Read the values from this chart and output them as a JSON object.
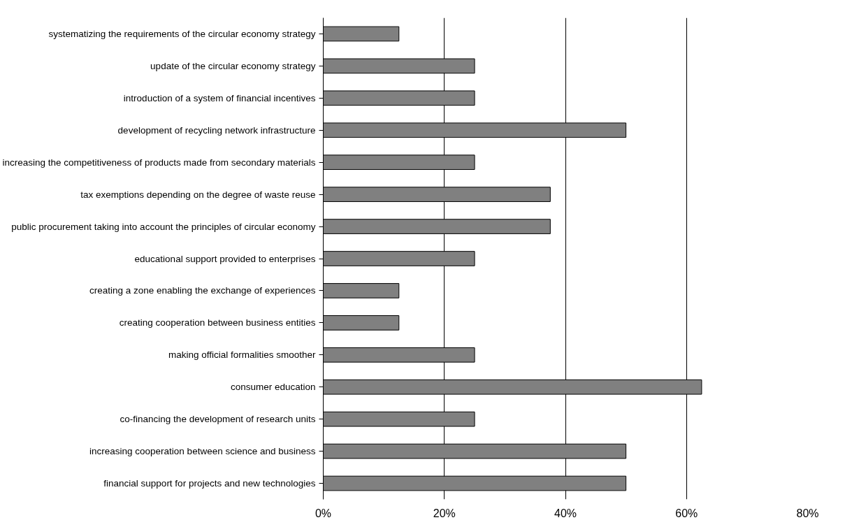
{
  "chart_data": {
    "type": "bar",
    "orientation": "horizontal",
    "categories": [
      "systematizing the requirements of the circular economy strategy",
      "update of the circular economy strategy",
      "introduction of a system of financial incentives",
      "development of recycling network infrastructure",
      "increasing the competitiveness of products made from secondary materials",
      "tax exemptions depending on the degree of waste reuse",
      "public procurement taking into account the principles of circular economy",
      "educational support provided to enterprises",
      "creating a zone enabling the exchange of experiences",
      "creating cooperation between business entities",
      "making official formalities smoother",
      "consumer education",
      "co-financing the development of research units",
      "increasing cooperation between science and business",
      "financial support for projects and new technologies"
    ],
    "values": [
      12.5,
      25,
      25,
      50,
      25,
      37.5,
      37.5,
      25,
      12.5,
      12.5,
      25,
      62.5,
      25,
      50,
      50
    ],
    "color": "#808080",
    "xlim": [
      0,
      80
    ],
    "xticks": [
      {
        "value": 0,
        "label": "0%"
      },
      {
        "value": 20,
        "label": "20%"
      },
      {
        "value": 40,
        "label": "40%"
      },
      {
        "value": 60,
        "label": "60%"
      },
      {
        "value": 80,
        "label": "80%"
      }
    ],
    "grid": "x"
  }
}
